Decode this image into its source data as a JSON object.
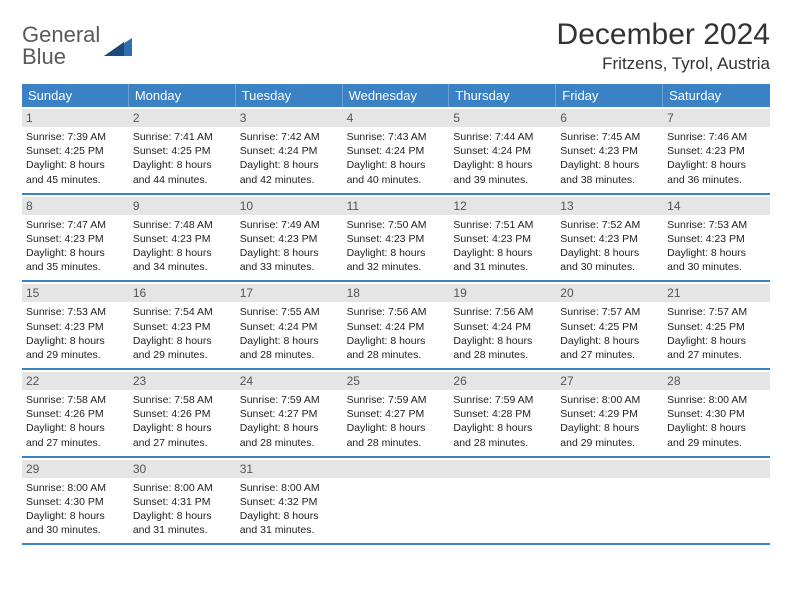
{
  "logo": {
    "line1": "General",
    "line2": "Blue"
  },
  "title": "December 2024",
  "location": "Fritzens, Tyrol, Austria",
  "colors": {
    "header_bg": "#3b82c4",
    "header_text": "#ffffff",
    "daynum_bg": "#e5e5e5",
    "border": "#3b82c4",
    "logo_gray": "#5a5a5a",
    "logo_blue": "#2f6fb0"
  },
  "weekdays": [
    "Sunday",
    "Monday",
    "Tuesday",
    "Wednesday",
    "Thursday",
    "Friday",
    "Saturday"
  ],
  "days": [
    {
      "n": 1,
      "sr": "7:39 AM",
      "ss": "4:25 PM",
      "dl": "8 hours and 45 minutes."
    },
    {
      "n": 2,
      "sr": "7:41 AM",
      "ss": "4:25 PM",
      "dl": "8 hours and 44 minutes."
    },
    {
      "n": 3,
      "sr": "7:42 AM",
      "ss": "4:24 PM",
      "dl": "8 hours and 42 minutes."
    },
    {
      "n": 4,
      "sr": "7:43 AM",
      "ss": "4:24 PM",
      "dl": "8 hours and 40 minutes."
    },
    {
      "n": 5,
      "sr": "7:44 AM",
      "ss": "4:24 PM",
      "dl": "8 hours and 39 minutes."
    },
    {
      "n": 6,
      "sr": "7:45 AM",
      "ss": "4:23 PM",
      "dl": "8 hours and 38 minutes."
    },
    {
      "n": 7,
      "sr": "7:46 AM",
      "ss": "4:23 PM",
      "dl": "8 hours and 36 minutes."
    },
    {
      "n": 8,
      "sr": "7:47 AM",
      "ss": "4:23 PM",
      "dl": "8 hours and 35 minutes."
    },
    {
      "n": 9,
      "sr": "7:48 AM",
      "ss": "4:23 PM",
      "dl": "8 hours and 34 minutes."
    },
    {
      "n": 10,
      "sr": "7:49 AM",
      "ss": "4:23 PM",
      "dl": "8 hours and 33 minutes."
    },
    {
      "n": 11,
      "sr": "7:50 AM",
      "ss": "4:23 PM",
      "dl": "8 hours and 32 minutes."
    },
    {
      "n": 12,
      "sr": "7:51 AM",
      "ss": "4:23 PM",
      "dl": "8 hours and 31 minutes."
    },
    {
      "n": 13,
      "sr": "7:52 AM",
      "ss": "4:23 PM",
      "dl": "8 hours and 30 minutes."
    },
    {
      "n": 14,
      "sr": "7:53 AM",
      "ss": "4:23 PM",
      "dl": "8 hours and 30 minutes."
    },
    {
      "n": 15,
      "sr": "7:53 AM",
      "ss": "4:23 PM",
      "dl": "8 hours and 29 minutes."
    },
    {
      "n": 16,
      "sr": "7:54 AM",
      "ss": "4:23 PM",
      "dl": "8 hours and 29 minutes."
    },
    {
      "n": 17,
      "sr": "7:55 AM",
      "ss": "4:24 PM",
      "dl": "8 hours and 28 minutes."
    },
    {
      "n": 18,
      "sr": "7:56 AM",
      "ss": "4:24 PM",
      "dl": "8 hours and 28 minutes."
    },
    {
      "n": 19,
      "sr": "7:56 AM",
      "ss": "4:24 PM",
      "dl": "8 hours and 28 minutes."
    },
    {
      "n": 20,
      "sr": "7:57 AM",
      "ss": "4:25 PM",
      "dl": "8 hours and 27 minutes."
    },
    {
      "n": 21,
      "sr": "7:57 AM",
      "ss": "4:25 PM",
      "dl": "8 hours and 27 minutes."
    },
    {
      "n": 22,
      "sr": "7:58 AM",
      "ss": "4:26 PM",
      "dl": "8 hours and 27 minutes."
    },
    {
      "n": 23,
      "sr": "7:58 AM",
      "ss": "4:26 PM",
      "dl": "8 hours and 27 minutes."
    },
    {
      "n": 24,
      "sr": "7:59 AM",
      "ss": "4:27 PM",
      "dl": "8 hours and 28 minutes."
    },
    {
      "n": 25,
      "sr": "7:59 AM",
      "ss": "4:27 PM",
      "dl": "8 hours and 28 minutes."
    },
    {
      "n": 26,
      "sr": "7:59 AM",
      "ss": "4:28 PM",
      "dl": "8 hours and 28 minutes."
    },
    {
      "n": 27,
      "sr": "8:00 AM",
      "ss": "4:29 PM",
      "dl": "8 hours and 29 minutes."
    },
    {
      "n": 28,
      "sr": "8:00 AM",
      "ss": "4:30 PM",
      "dl": "8 hours and 29 minutes."
    },
    {
      "n": 29,
      "sr": "8:00 AM",
      "ss": "4:30 PM",
      "dl": "8 hours and 30 minutes."
    },
    {
      "n": 30,
      "sr": "8:00 AM",
      "ss": "4:31 PM",
      "dl": "8 hours and 31 minutes."
    },
    {
      "n": 31,
      "sr": "8:00 AM",
      "ss": "4:32 PM",
      "dl": "8 hours and 31 minutes."
    }
  ],
  "labels": {
    "sunrise": "Sunrise:",
    "sunset": "Sunset:",
    "daylight": "Daylight:"
  }
}
